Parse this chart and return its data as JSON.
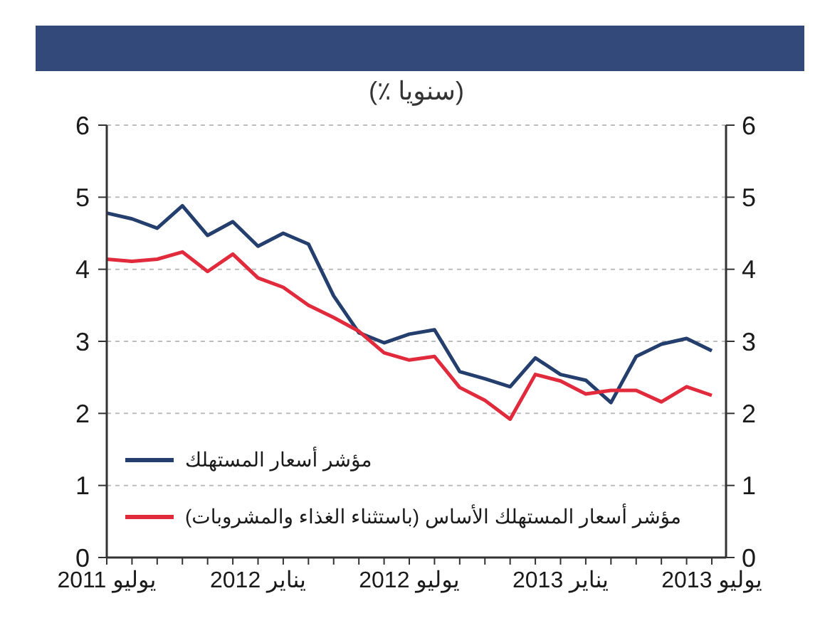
{
  "chart_data": {
    "type": "line",
    "subtitle": "(٪ سنويا)",
    "categories": [
      "يوليو 2011",
      null,
      null,
      null,
      null,
      null,
      "يناير 2012",
      null,
      null,
      null,
      null,
      null,
      "يوليو 2012",
      null,
      null,
      null,
      null,
      null,
      "يناير 2013",
      null,
      null,
      null,
      null,
      null,
      "يوليو 2013"
    ],
    "series": [
      {
        "name": "مؤشر أسعار المستهلك",
        "color": "#243f6e",
        "values": [
          4.78,
          4.7,
          4.57,
          4.88,
          4.47,
          4.66,
          4.32,
          4.5,
          4.35,
          3.63,
          3.12,
          2.98,
          3.1,
          3.16,
          2.58,
          2.48,
          2.37,
          2.77,
          2.54,
          2.46,
          2.15,
          2.79,
          2.96,
          3.04,
          2.87
        ]
      },
      {
        "name": "مؤشر أسعار المستهلك الأساس (باستثناء الغذاء والمشروبات)",
        "color": "#e12a3c",
        "values": [
          4.14,
          4.11,
          4.14,
          4.24,
          3.97,
          4.21,
          3.88,
          3.75,
          3.5,
          3.33,
          3.14,
          2.84,
          2.74,
          2.79,
          2.36,
          2.18,
          1.92,
          2.54,
          2.45,
          2.27,
          2.32,
          2.32,
          2.16,
          2.37,
          2.25
        ]
      }
    ],
    "ylim": [
      0,
      6
    ],
    "yticks": [
      0,
      1,
      2,
      3,
      4,
      5,
      6
    ],
    "y2lim": [
      0,
      6
    ],
    "y2ticks": [
      0,
      1,
      2,
      3,
      4,
      5,
      6
    ],
    "grid": "y",
    "legend": "bottom left"
  }
}
